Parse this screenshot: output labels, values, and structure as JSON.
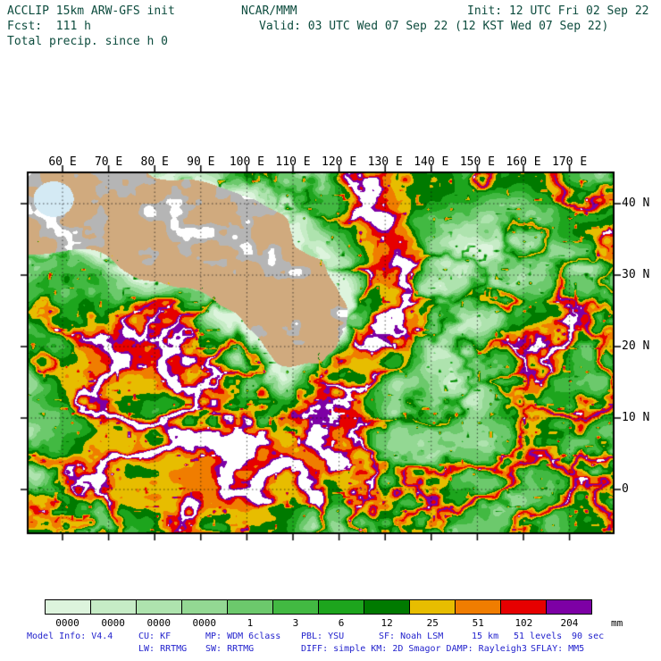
{
  "header": {
    "title": "ACCLIP 15km ARW-GFS init",
    "org": "NCAR/MMM",
    "init": "Init: 12 UTC Fri 02 Sep 22",
    "fcst": "Fcst:  111 h",
    "valid": "Valid: 03 UTC Wed 07 Sep 22 (12 KST Wed 07 Sep 22)",
    "subtitle": "Total precip. since h 0"
  },
  "map": {
    "lon_labels": [
      "60 E",
      "70 E",
      "80 E",
      "90 E",
      "100 E",
      "110 E",
      "120 E",
      "130 E",
      "140 E",
      "150 E",
      "160 E",
      "170 E"
    ],
    "lat_labels": [
      "40 N",
      "30 N",
      "20 N",
      "10 N",
      "0"
    ],
    "palette_extra": {
      "extreme": "#ffffff",
      "dry_land": "#d0aa7e",
      "mountain": "#b5b5b5",
      "water": "#d4eaf4"
    }
  },
  "colorbar": {
    "colors": [
      "#ddf4dd",
      "#c6ecc6",
      "#aee3ae",
      "#93d893",
      "#6cc96c",
      "#42b942",
      "#1da51d",
      "#007a00",
      "#e7bd00",
      "#f07d00",
      "#e60000",
      "#7d00a5"
    ],
    "labels": [
      "0000",
      "0000",
      "0000",
      "0000",
      "1",
      "3",
      "6",
      "12",
      "25",
      "51",
      "102",
      "204"
    ],
    "unit": "mm"
  },
  "footer": {
    "model_info": "Model Info: V4.4",
    "cu": "CU: KF",
    "mp": "MP: WDM 6class",
    "pbl": "PBL: YSU",
    "sf": "SF: Noah LSM",
    "res": "15 km",
    "levels": "51 levels",
    "step": "90 sec",
    "lw": "LW: RRTMG",
    "sw": "SW: RRTMG",
    "diff": "DIFF: simple KM: 2D Smagor DAMP: Rayleigh3",
    "sflay": "SFLAY: MM5"
  }
}
